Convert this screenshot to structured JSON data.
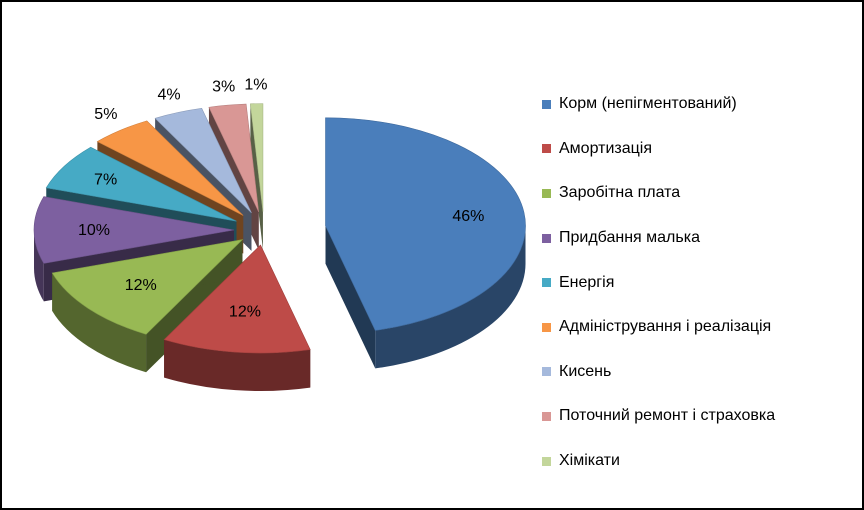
{
  "chart_data": {
    "type": "pie",
    "style": "3d-exploded",
    "title": "",
    "legend_position": "right",
    "slices": [
      {
        "label": "Корм (непігментований)",
        "value": 46,
        "value_label": "46%",
        "color": "#4a7ebb"
      },
      {
        "label": "Амортизація",
        "value": 12,
        "value_label": "12%",
        "color": "#be4b48"
      },
      {
        "label": "Заробітна плата",
        "value": 12,
        "value_label": "12%",
        "color": "#98b954"
      },
      {
        "label": "Придбання малька",
        "value": 10,
        "value_label": "10%",
        "color": "#7d60a0"
      },
      {
        "label": "Енергія",
        "value": 7,
        "value_label": "7%",
        "color": "#46aac5"
      },
      {
        "label": "Адміністрування і реалізація",
        "value": 5,
        "value_label": "5%",
        "color": "#f79646"
      },
      {
        "label": "Кисень",
        "value": 4,
        "value_label": "4%",
        "color": "#a5b9dc"
      },
      {
        "label": "Поточний ремонт і страховка",
        "value": 3,
        "value_label": "3%",
        "color": "#d99795"
      },
      {
        "label": "Хімікати",
        "value": 1,
        "value_label": "1%",
        "color": "#c3d69b"
      }
    ]
  }
}
